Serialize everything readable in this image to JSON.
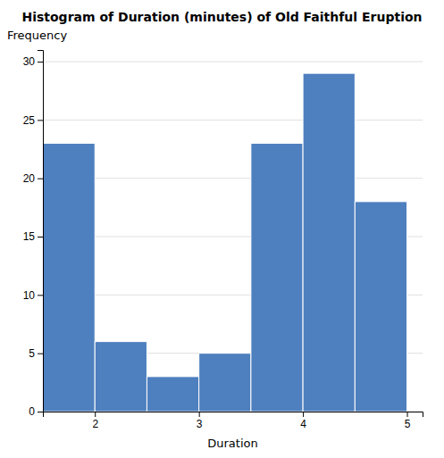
{
  "chart_data": {
    "type": "histogram",
    "title": "Histogram of Duration (minutes) of Old Faithful Eruption",
    "xlabel": "Duration",
    "ylabel": "Frequency",
    "bins": [
      1.5,
      2.0,
      2.5,
      3.0,
      3.5,
      4.0,
      4.5,
      5.0
    ],
    "values": [
      23,
      6,
      3,
      5,
      23,
      29,
      18
    ],
    "color": "#4E7FBE",
    "xlim": [
      1.5,
      5.15
    ],
    "ylim": [
      0,
      31
    ],
    "xticks": [
      2,
      3,
      4,
      5
    ],
    "yticks": [
      0,
      5,
      10,
      15,
      20,
      25,
      30
    ],
    "grid": "y"
  }
}
